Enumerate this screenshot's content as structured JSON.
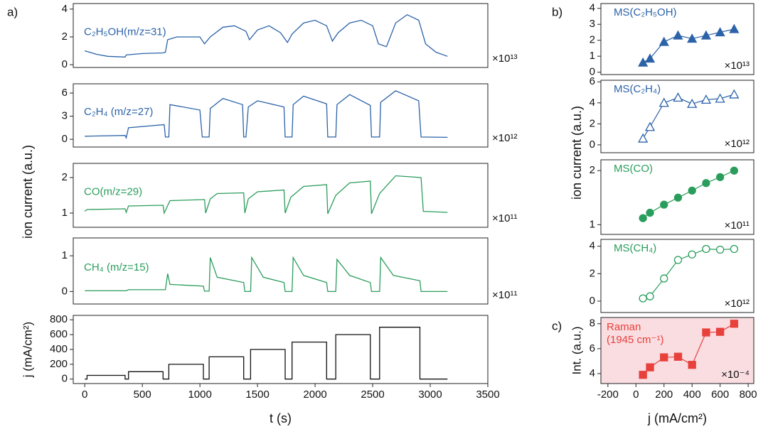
{
  "panel_labels": [
    "a)",
    "b)",
    "c)"
  ],
  "left_ylabel": "ion current (a.u.)",
  "right_ylabel": "ion current (a.u.)",
  "chart_data": [
    {
      "type": "line",
      "xlim": [
        -100,
        3500
      ],
      "ylim": [
        -0.2,
        4.4
      ],
      "yticks": [
        0,
        2,
        4
      ],
      "multiplier": "×10¹³",
      "x": [
        0,
        100,
        200,
        350,
        360,
        500,
        680,
        700,
        720,
        800,
        1000,
        1040,
        1090,
        1200,
        1300,
        1400,
        1430,
        1500,
        1600,
        1700,
        1760,
        1800,
        1900,
        2000,
        2100,
        2150,
        2200,
        2300,
        2400,
        2500,
        2550,
        2620,
        2700,
        2800,
        2900,
        2960,
        3050,
        3150
      ],
      "series": [
        {
          "name": "C₂H₅OH(m/z=31)",
          "color": "#2c63a8",
          "values": [
            1.0,
            0.75,
            0.6,
            0.55,
            0.7,
            0.8,
            0.85,
            0.9,
            1.8,
            2.0,
            2.0,
            1.5,
            2.0,
            2.7,
            2.8,
            2.4,
            1.8,
            2.5,
            2.8,
            2.3,
            1.6,
            2.2,
            3.0,
            3.2,
            2.8,
            1.7,
            2.3,
            3.0,
            3.2,
            2.8,
            1.5,
            1.3,
            3.0,
            3.6,
            3.2,
            1.5,
            0.9,
            0.6
          ]
        }
      ]
    },
    {
      "type": "line",
      "xlim": [
        -100,
        3500
      ],
      "ylim": [
        -1,
        7.2
      ],
      "yticks": [
        0,
        3,
        6
      ],
      "multiplier": "×10¹²",
      "x": [
        0,
        350,
        360,
        380,
        690,
        700,
        730,
        740,
        1000,
        1020,
        1080,
        1090,
        1200,
        1370,
        1380,
        1400,
        1420,
        1500,
        1730,
        1740,
        1800,
        1810,
        1900,
        2100,
        2110,
        2180,
        2190,
        2300,
        2480,
        2490,
        2560,
        2570,
        2700,
        2900,
        2920,
        3150
      ],
      "series": [
        {
          "name": "C₂H₄ (m/z=27)",
          "color": "#2c63a8",
          "values": [
            0.4,
            0.5,
            0.2,
            1.5,
            1.9,
            0.3,
            0.3,
            4.5,
            3.8,
            0.3,
            0.3,
            4.0,
            5.3,
            4.5,
            0.3,
            0.3,
            4.2,
            5.0,
            4.2,
            0.3,
            0.3,
            4.5,
            5.6,
            4.6,
            0.3,
            0.3,
            4.5,
            5.8,
            4.4,
            0.3,
            0.3,
            4.8,
            6.3,
            5.0,
            0.3,
            0.25
          ]
        }
      ]
    },
    {
      "type": "line",
      "xlim": [
        -100,
        3500
      ],
      "ylim": [
        0.6,
        2.4
      ],
      "yticks": [
        1,
        2
      ],
      "multiplier": "×10¹¹",
      "x": [
        0,
        20,
        350,
        360,
        380,
        680,
        690,
        740,
        1040,
        1050,
        1090,
        1150,
        1380,
        1390,
        1420,
        1500,
        1730,
        1740,
        1790,
        1900,
        2100,
        2110,
        2180,
        2300,
        2480,
        2490,
        2560,
        2700,
        2920,
        2940,
        3150
      ],
      "series": [
        {
          "name": "CO(m/z=29)",
          "color": "#2a9d5c",
          "values": [
            1.05,
            1.1,
            1.12,
            1.02,
            1.2,
            1.22,
            1.0,
            1.35,
            1.38,
            1.0,
            1.4,
            1.55,
            1.57,
            1.0,
            1.4,
            1.6,
            1.65,
            1.0,
            1.45,
            1.75,
            1.8,
            0.98,
            1.5,
            1.85,
            1.9,
            0.98,
            1.55,
            2.05,
            2.0,
            1.05,
            1.02
          ]
        }
      ]
    },
    {
      "type": "line",
      "xlim": [
        -100,
        3500
      ],
      "ylim": [
        -0.35,
        1.5
      ],
      "yticks": [
        0,
        1
      ],
      "multiplier": "×10¹¹",
      "x": [
        0,
        360,
        380,
        700,
        720,
        740,
        1030,
        1040,
        1080,
        1090,
        1150,
        1380,
        1390,
        1440,
        1450,
        1550,
        1730,
        1740,
        1800,
        1810,
        1900,
        2100,
        2110,
        2180,
        2190,
        2300,
        2480,
        2490,
        2560,
        2570,
        2680,
        2910,
        2920,
        3150
      ],
      "series": [
        {
          "name": "CH₄ (m/z=15)",
          "color": "#2a9d5c",
          "values": [
            0.02,
            0.02,
            0.05,
            0.05,
            0.5,
            0.2,
            0.15,
            0.01,
            0.01,
            0.95,
            0.4,
            0.25,
            0,
            0,
            0.95,
            0.4,
            0.25,
            0,
            0,
            0.95,
            0.45,
            0.25,
            0,
            0,
            0.9,
            0.45,
            0.25,
            0,
            0,
            0.95,
            0.45,
            0.3,
            0,
            0
          ]
        }
      ]
    },
    {
      "type": "line",
      "xlim": [
        -100,
        3500
      ],
      "ylim": [
        -60,
        860
      ],
      "yticks": [
        0,
        200,
        400,
        600,
        800
      ],
      "xticks": [
        0,
        500,
        1000,
        1500,
        2000,
        2500,
        3000,
        3500
      ],
      "xlabel": "t (s)",
      "ylabel": "j (mA/cm²)",
      "x": [
        0,
        20,
        20,
        350,
        350,
        380,
        380,
        680,
        680,
        730,
        730,
        1030,
        1030,
        1080,
        1080,
        1380,
        1380,
        1440,
        1440,
        1740,
        1740,
        1800,
        1800,
        2100,
        2100,
        2180,
        2180,
        2480,
        2480,
        2560,
        2560,
        2910,
        2910,
        3150
      ],
      "series": [
        {
          "name": null,
          "color": "#111111",
          "values": [
            0,
            0,
            50,
            50,
            0,
            0,
            100,
            100,
            0,
            0,
            200,
            200,
            0,
            0,
            300,
            300,
            0,
            0,
            400,
            400,
            0,
            0,
            500,
            500,
            0,
            0,
            600,
            600,
            0,
            0,
            700,
            700,
            0,
            0
          ]
        }
      ]
    },
    {
      "type": "line",
      "marker": "triangle",
      "filled": true,
      "xlim": [
        -250,
        840
      ],
      "ylim": [
        -0.15,
        4.3
      ],
      "yticks": [
        0,
        1,
        2,
        3,
        4
      ],
      "multiplier": "×10¹³",
      "x": [
        50,
        100,
        200,
        300,
        400,
        500,
        600,
        700
      ],
      "series": [
        {
          "name": "MS(C₂H₅OH)",
          "color": "#2c63a8",
          "values": [
            0.6,
            0.85,
            1.9,
            2.3,
            2.1,
            2.3,
            2.5,
            2.7
          ]
        }
      ]
    },
    {
      "type": "line",
      "marker": "triangle",
      "filled": false,
      "xlim": [
        -250,
        840
      ],
      "ylim": [
        -0.75,
        6.15
      ],
      "yticks": [
        0,
        2,
        4,
        6
      ],
      "multiplier": "×10¹²",
      "x": [
        50,
        100,
        200,
        300,
        400,
        500,
        600,
        700
      ],
      "series": [
        {
          "name": "MS(C₂H₄)",
          "color": "#2c63a8",
          "values": [
            0.6,
            1.7,
            4.0,
            4.5,
            3.9,
            4.3,
            4.4,
            4.8
          ]
        }
      ]
    },
    {
      "type": "line",
      "marker": "circle",
      "filled": true,
      "xlim": [
        -250,
        840
      ],
      "ylim": [
        0.82,
        2.2
      ],
      "yticks": [
        1,
        2
      ],
      "multiplier": "×10¹¹",
      "x": [
        50,
        100,
        200,
        300,
        400,
        500,
        600,
        700
      ],
      "series": [
        {
          "name": "MS(CO)",
          "color": "#2a9d5c",
          "values": [
            1.12,
            1.22,
            1.37,
            1.5,
            1.63,
            1.77,
            1.88,
            2.0
          ]
        }
      ]
    },
    {
      "type": "line",
      "marker": "circle",
      "filled": false,
      "xlim": [
        -250,
        840
      ],
      "ylim": [
        -0.83,
        4.5
      ],
      "yticks": [
        0,
        2,
        4
      ],
      "multiplier": "×10¹²",
      "x": [
        50,
        100,
        200,
        300,
        400,
        500,
        600,
        700
      ],
      "series": [
        {
          "name": "MS(CH₄)",
          "color": "#2a9d5c",
          "values": [
            0.2,
            0.35,
            1.65,
            3.0,
            3.4,
            3.8,
            3.75,
            3.8
          ]
        }
      ]
    },
    {
      "type": "line",
      "marker": "square",
      "filled": true,
      "background": "#f9dde1",
      "xlim": [
        -250,
        840
      ],
      "ylim": [
        3.2,
        8.5
      ],
      "yticks": [
        4,
        6,
        8
      ],
      "xticks": [
        -200,
        0,
        200,
        400,
        600,
        800
      ],
      "xlabel": "j (mA/cm²)",
      "ylabel": "Int. (a.u.)",
      "multiplier": "×10⁻⁴",
      "annotation": [
        "Raman",
        "(1945 cm⁻¹)"
      ],
      "x": [
        50,
        100,
        200,
        300,
        400,
        500,
        600,
        700
      ],
      "series": [
        {
          "name": null,
          "color": "#e8413c",
          "values": [
            3.9,
            4.5,
            5.3,
            5.35,
            4.7,
            7.3,
            7.35,
            8.0
          ]
        }
      ]
    }
  ]
}
